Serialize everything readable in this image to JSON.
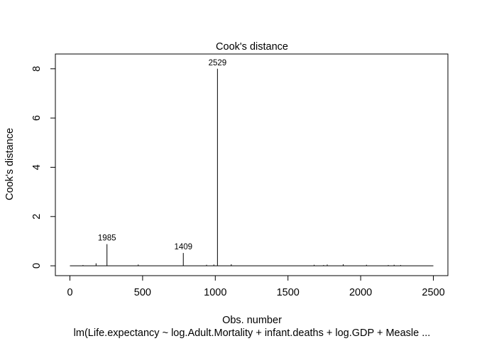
{
  "chart_data": {
    "type": "bar",
    "title": "Cook's distance",
    "xlabel": "Obs. number",
    "ylabel": "Cook's distance",
    "subtitle": "lm(Life.expectancy ~ log.Adult.Mortality + infant.deaths + log.GDP + Measle ...",
    "xlim": [
      -100,
      2600
    ],
    "ylim": [
      -0.4,
      8.6
    ],
    "x_ticks": [
      0,
      500,
      1000,
      1500,
      2000,
      2500
    ],
    "y_ticks": [
      0,
      2,
      4,
      6,
      8
    ],
    "series": [
      {
        "x": [
          90,
          180,
          255,
          470,
          780,
          940,
          990,
          1015,
          1110,
          1680,
          1745,
          1770,
          1880,
          2040,
          2190,
          2230,
          2275
        ],
        "values": [
          0.03,
          0.1,
          0.88,
          0.05,
          0.52,
          0.04,
          0.05,
          8.0,
          0.06,
          0.04,
          0.03,
          0.05,
          0.06,
          0.04,
          0.03,
          0.04,
          0.03
        ]
      }
    ],
    "point_labels": [
      {
        "x": 255,
        "y": 0.88,
        "label": "1985"
      },
      {
        "x": 780,
        "y": 0.52,
        "label": "1409"
      },
      {
        "x": 1015,
        "y": 8.0,
        "label": "2529"
      }
    ],
    "baseline": {
      "x_start": 0,
      "x_end": 2500
    },
    "grid": false,
    "legend": "none"
  }
}
